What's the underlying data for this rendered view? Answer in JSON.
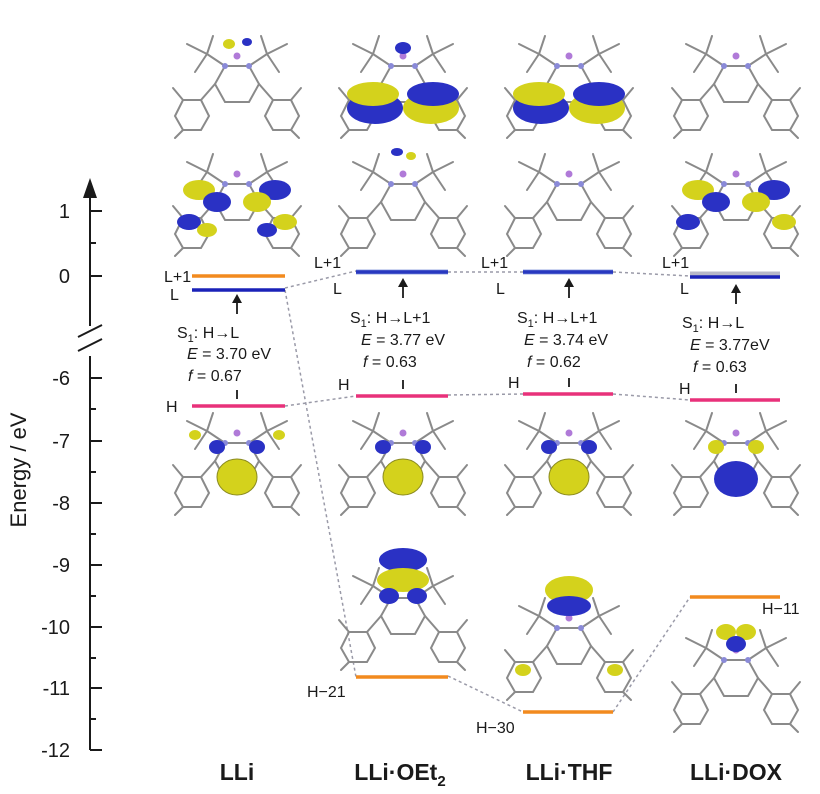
{
  "axis": {
    "label": "Energy / eV",
    "ticks_upper": [
      "1",
      "0"
    ],
    "ticks_lower": [
      "-6",
      "-7",
      "-8",
      "-9",
      "-10",
      "-11",
      "-12"
    ]
  },
  "colors": {
    "homo": "#e8317a",
    "lumo": "#1a22b8",
    "lumo_plus1": "#f28a1e",
    "deep": "#f28a1e",
    "lobe_yellow": "#d4d21c",
    "lobe_blue": "#2a31c4"
  },
  "columns": [
    {
      "id": "lli",
      "name": "LLi",
      "sub": "",
      "lumo_plus1_label": "L+1",
      "lumo_label": "L",
      "homo_label": "H",
      "transition_state": "S",
      "transition_state_sub": "1",
      "transition": ": H→L",
      "energy_symbol": "E",
      "energy": " = 3.70 eV",
      "osc_symbol": "f",
      "osc": " = 0.67",
      "deep_label": ""
    },
    {
      "id": "oet2",
      "name": "LLi·OEt",
      "sub": "2",
      "lumo_plus1_label": "L+1",
      "lumo_label": "L",
      "homo_label": "H",
      "transition_state": "S",
      "transition_state_sub": "1",
      "transition": ": H→L+1",
      "energy_symbol": "E",
      "energy": " = 3.77 eV",
      "osc_symbol": "f",
      "osc": " = 0.63",
      "deep_label": "H−21"
    },
    {
      "id": "thf",
      "name": "LLi·THF",
      "sub": "",
      "lumo_plus1_label": "L+1",
      "lumo_label": "L",
      "homo_label": "H",
      "transition_state": "S",
      "transition_state_sub": "1",
      "transition": ": H→L+1",
      "energy_symbol": "E",
      "energy": " = 3.74 eV",
      "osc_symbol": "f",
      "osc": " = 0.62",
      "deep_label": "H−30"
    },
    {
      "id": "dox",
      "name": "LLi·DOX",
      "sub": "",
      "lumo_plus1_label": "L+1",
      "lumo_label": "L",
      "homo_label": "H",
      "transition_state": "S",
      "transition_state_sub": "1",
      "transition": ": H→L",
      "energy_symbol": "E",
      "energy": " = 3.77eV",
      "osc_symbol": "f",
      "osc": " = 0.63",
      "deep_label": "H−11"
    }
  ]
}
